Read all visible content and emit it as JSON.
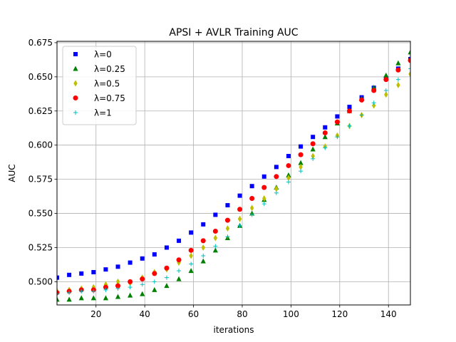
{
  "chart_data": {
    "type": "scatter",
    "title": "APSI + AVLR Training AUC",
    "xlabel": "iterations",
    "ylabel": "AUC",
    "xlim": [
      4,
      149
    ],
    "ylim": [
      0.483,
      0.676
    ],
    "xticks": [
      20,
      40,
      60,
      80,
      100,
      120,
      140
    ],
    "yticks": [
      0.5,
      0.525,
      0.55,
      0.575,
      0.6,
      0.625,
      0.65,
      0.675
    ],
    "ytick_labels": [
      "0.500",
      "0.525",
      "0.550",
      "0.575",
      "0.600",
      "0.625",
      "0.650",
      "0.675"
    ],
    "grid": true,
    "legend_position": "top-left",
    "x": [
      4,
      9,
      14,
      19,
      24,
      29,
      34,
      39,
      44,
      49,
      54,
      59,
      64,
      69,
      74,
      79,
      84,
      89,
      94,
      99,
      104,
      109,
      114,
      119,
      124,
      129,
      134,
      139,
      144,
      149
    ],
    "series": [
      {
        "name": "λ=0",
        "marker": "square",
        "color": "#0000ff",
        "values": [
          0.503,
          0.505,
          0.506,
          0.507,
          0.509,
          0.511,
          0.514,
          0.517,
          0.52,
          0.525,
          0.53,
          0.536,
          0.542,
          0.549,
          0.556,
          0.563,
          0.57,
          0.577,
          0.584,
          0.592,
          0.599,
          0.606,
          0.613,
          0.621,
          0.628,
          0.635,
          0.642,
          0.649,
          0.656,
          0.663
        ]
      },
      {
        "name": "λ=0.25",
        "marker": "triangle",
        "color": "#008000",
        "values": [
          0.487,
          0.487,
          0.488,
          0.488,
          0.488,
          0.489,
          0.49,
          0.491,
          0.494,
          0.497,
          0.502,
          0.508,
          0.515,
          0.523,
          0.532,
          0.541,
          0.55,
          0.56,
          0.569,
          0.578,
          0.587,
          0.597,
          0.606,
          0.616,
          0.625,
          0.634,
          0.642,
          0.651,
          0.66,
          0.668
        ]
      },
      {
        "name": "λ=0.5",
        "marker": "thin-diamond",
        "color": "#bfbf00",
        "values": [
          0.493,
          0.494,
          0.495,
          0.496,
          0.498,
          0.5,
          0.499,
          0.503,
          0.507,
          0.509,
          0.514,
          0.519,
          0.525,
          0.532,
          0.539,
          0.546,
          0.554,
          0.561,
          0.568,
          0.576,
          0.584,
          0.592,
          0.599,
          0.607,
          0.614,
          0.622,
          0.629,
          0.637,
          0.644,
          0.652
        ]
      },
      {
        "name": "λ=0.75",
        "marker": "circle",
        "color": "#ff0000",
        "values": [
          0.492,
          0.493,
          0.494,
          0.494,
          0.496,
          0.497,
          0.5,
          0.502,
          0.506,
          0.51,
          0.516,
          0.523,
          0.53,
          0.537,
          0.545,
          0.553,
          0.561,
          0.569,
          0.577,
          0.585,
          0.593,
          0.601,
          0.609,
          0.617,
          0.625,
          0.633,
          0.64,
          0.648,
          0.655,
          0.662
        ]
      },
      {
        "name": "λ=1",
        "marker": "plus",
        "color": "#00bfbf",
        "values": [
          0.491,
          0.492,
          0.493,
          0.493,
          0.494,
          0.495,
          0.496,
          0.498,
          0.5,
          0.503,
          0.508,
          0.513,
          0.519,
          0.526,
          0.533,
          0.541,
          0.549,
          0.557,
          0.565,
          0.573,
          0.581,
          0.59,
          0.598,
          0.606,
          0.614,
          0.622,
          0.631,
          0.64,
          0.648,
          0.656
        ]
      }
    ]
  }
}
